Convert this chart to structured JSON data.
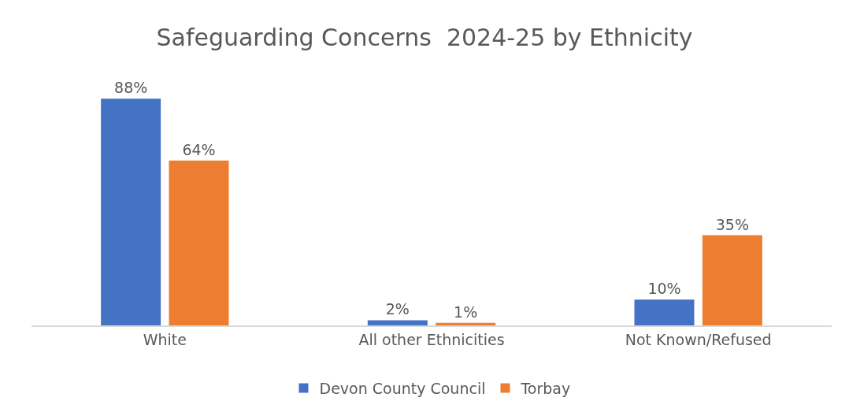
{
  "chart_data": {
    "type": "bar",
    "title": "Safeguarding Concerns  2024-25 by Ethnicity",
    "categories": [
      "White",
      "All other Ethnicities",
      "Not Known/Refused"
    ],
    "series": [
      {
        "name": "Devon County Council",
        "color": "#4472c4",
        "values": [
          88,
          2,
          10
        ],
        "value_labels": [
          "88%",
          "2%",
          "10%"
        ]
      },
      {
        "name": "Torbay",
        "color": "#ed7d31",
        "values": [
          64,
          1,
          35
        ],
        "value_labels": [
          "64%",
          "1%",
          "35%"
        ]
      }
    ],
    "legend": "bottom"
  }
}
